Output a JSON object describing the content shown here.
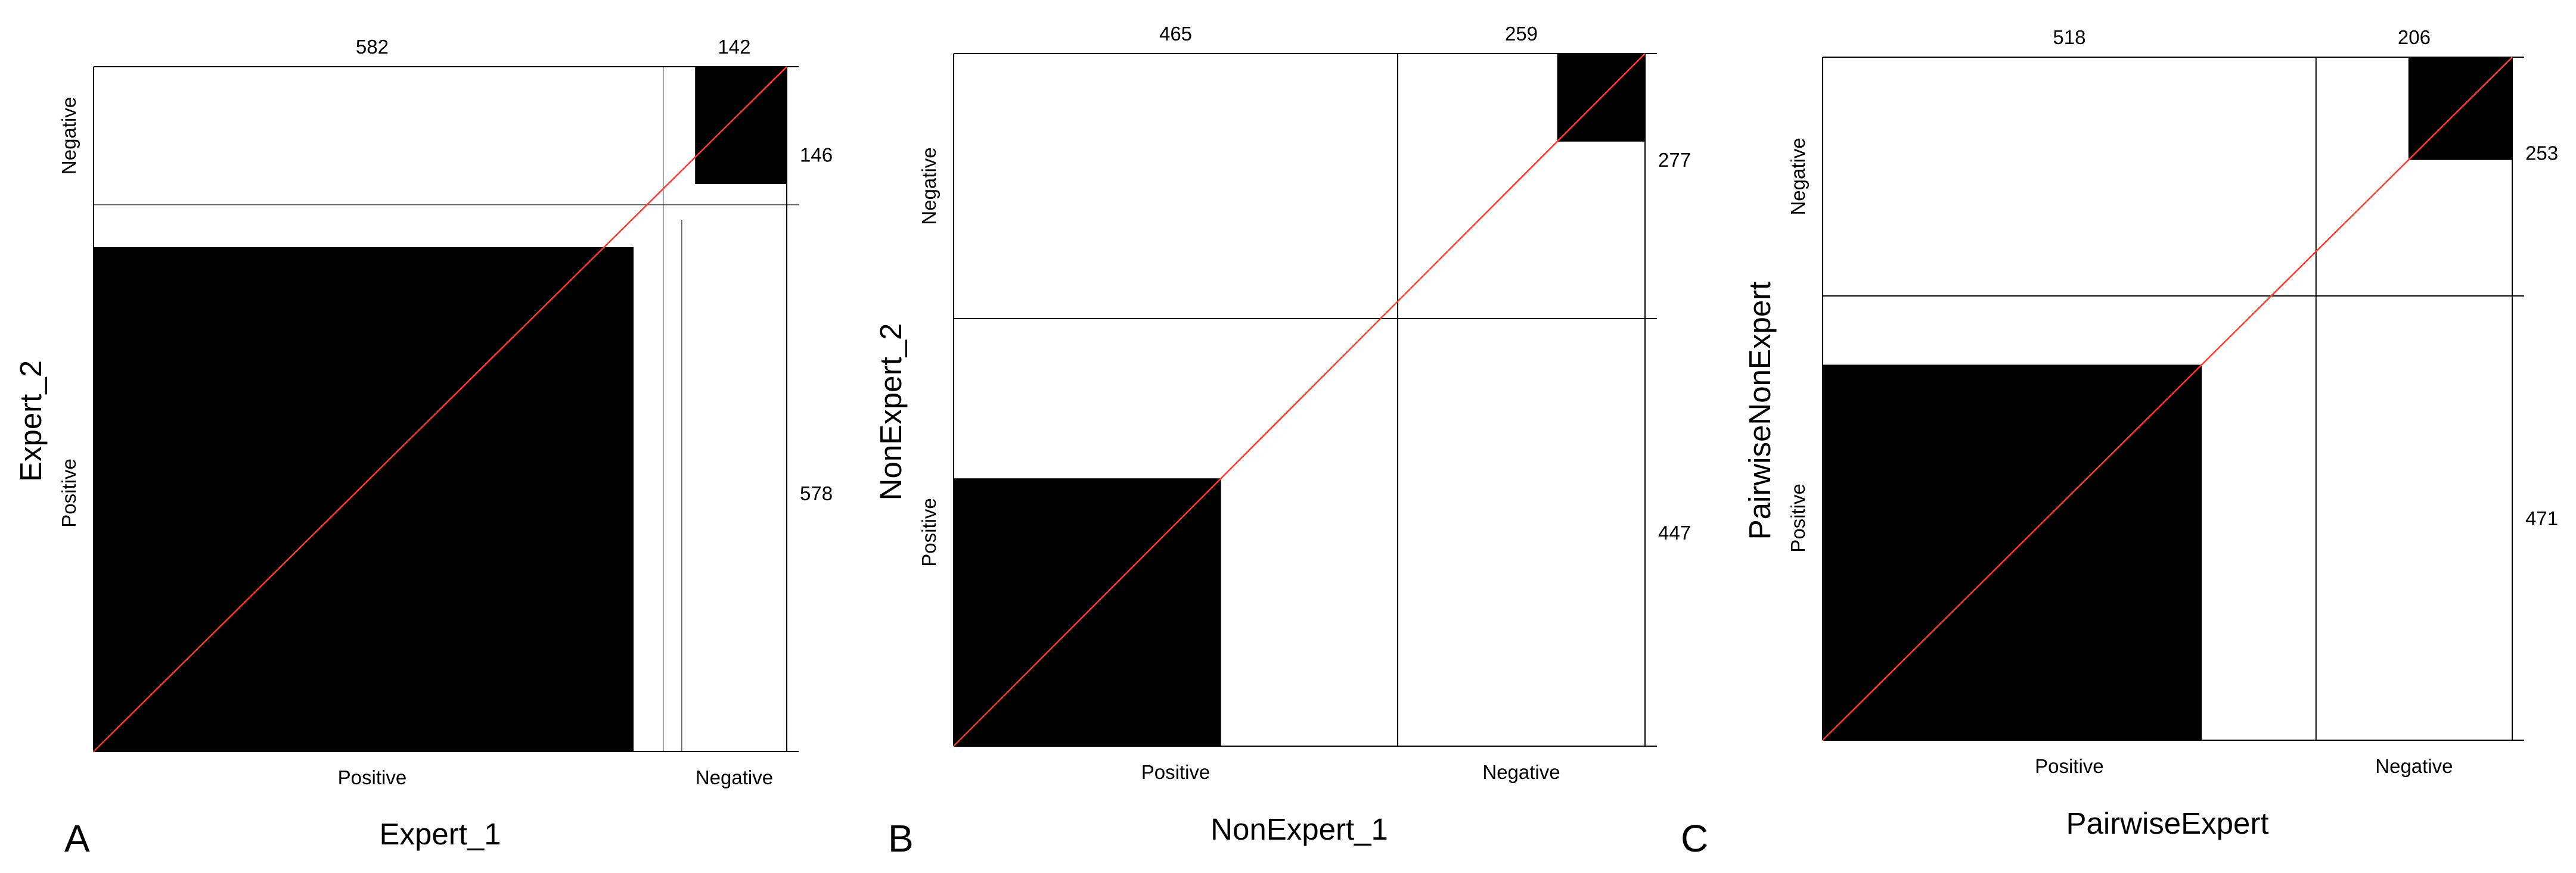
{
  "chart_data": [
    {
      "type": "mosaic",
      "panel_label": "A",
      "xlabel": "Expert_1",
      "ylabel": "Expert_2",
      "x_categories": [
        "Positive",
        "Negative"
      ],
      "y_categories": [
        "Negative",
        "Positive"
      ],
      "x_totals": [
        582,
        142
      ],
      "y_totals": [
        146,
        578
      ],
      "agreement": {
        "positive": 564,
        "negative": 124
      }
    },
    {
      "type": "mosaic",
      "panel_label": "B",
      "xlabel": "NonExpert_1",
      "ylabel": "NonExpert_2",
      "x_categories": [
        "Positive",
        "Negative"
      ],
      "y_categories": [
        "Negative",
        "Positive"
      ],
      "x_totals": [
        465,
        259
      ],
      "y_totals": [
        277,
        447
      ],
      "agreement": {
        "positive": 280,
        "negative": 92
      }
    },
    {
      "type": "mosaic",
      "panel_label": "C",
      "xlabel": "PairwiseExpert",
      "ylabel": "PairwiseNonExpert",
      "x_categories": [
        "Positive",
        "Negative"
      ],
      "y_categories": [
        "Negative",
        "Positive"
      ],
      "x_totals": [
        518,
        206
      ],
      "y_totals": [
        253,
        471
      ],
      "agreement": {
        "positive": 398,
        "negative": 109
      }
    }
  ],
  "colors": {
    "cell": "#000000",
    "diagonal": "#ff3b30",
    "line": "#000000"
  }
}
